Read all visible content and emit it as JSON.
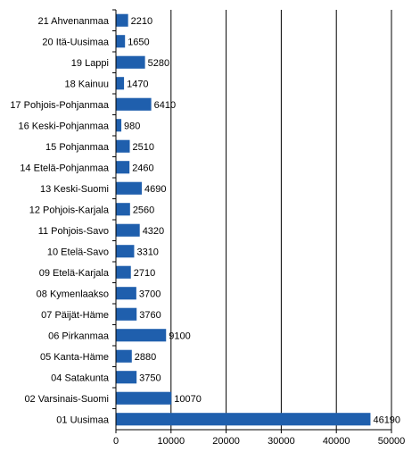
{
  "chart_data": {
    "type": "bar",
    "orientation": "horizontal",
    "categories": [
      "21 Ahvenanmaa",
      "20 Itä-Uusimaa",
      "19 Lappi",
      "18 Kainuu",
      "17 Pohjois-Pohjanmaa",
      "16 Keski-Pohjanmaa",
      "15 Pohjanmaa",
      "14 Etelä-Pohjanmaa",
      "13 Keski-Suomi",
      "12 Pohjois-Karjala",
      "11 Pohjois-Savo",
      "10 Etelä-Savo",
      "09 Etelä-Karjala",
      "08 Kymenlaakso",
      "07 Päijät-Häme",
      "06 Pirkanmaa",
      "05 Kanta-Häme",
      "04 Satakunta",
      "02 Varsinais-Suomi",
      "01 Uusimaa"
    ],
    "values": [
      2210,
      1650,
      5280,
      1470,
      6410,
      980,
      2510,
      2460,
      4690,
      2560,
      4320,
      3310,
      2710,
      3700,
      3760,
      9100,
      2880,
      3750,
      10070,
      46190
    ],
    "data_labels": [
      "2210",
      "1650",
      "5280",
      "1470",
      "6410",
      "980",
      "2510",
      "2460",
      "4690",
      "2560",
      "4320",
      "3310",
      "2710",
      "3700",
      "3760",
      "9100",
      "2880",
      "3750",
      "10070",
      "46190"
    ],
    "xlim": [
      0,
      50000
    ],
    "xticks": [
      0,
      10000,
      20000,
      30000,
      40000,
      50000
    ],
    "xtick_labels": [
      "0",
      "10000",
      "20000",
      "30000",
      "40000",
      "50000"
    ],
    "title": "",
    "xlabel": "",
    "ylabel": "",
    "grid": "vertical",
    "legend": "none",
    "colors": {
      "bar": "#1f5fad",
      "grid": "#000000",
      "axis": "#000000",
      "background": "#ffffff"
    }
  }
}
